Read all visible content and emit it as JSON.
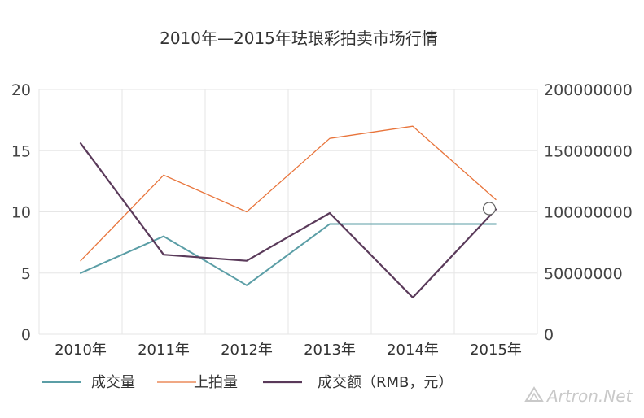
{
  "chart_data": {
    "type": "line",
    "title": "2010年—2015年珐琅彩拍卖市场行情",
    "categories": [
      "2010年",
      "2011年",
      "2012年",
      "2013年",
      "2014年",
      "2015年"
    ],
    "left_axis": {
      "ylim": [
        0,
        20
      ],
      "ticks": [
        "0",
        "5",
        "10",
        "15",
        "20"
      ]
    },
    "right_axis": {
      "ylim": [
        0,
        200000000
      ],
      "ticks": [
        "0",
        "50000000",
        "100000000",
        "150000000",
        "200000000"
      ]
    },
    "series": [
      {
        "name": "成交量",
        "axis": "left",
        "color": "#5b9ea6",
        "width": 2,
        "values": [
          5,
          8,
          4,
          9,
          9,
          9
        ]
      },
      {
        "name": "上拍量",
        "axis": "left",
        "color": "#e8743b",
        "width": 1.3,
        "values": [
          6,
          13,
          10,
          16,
          17,
          11
        ]
      },
      {
        "name": "成交额（RMB，元）",
        "axis": "right",
        "color": "#5a3a5a",
        "width": 2.2,
        "values": [
          156000000,
          65000000,
          60000000,
          99000000,
          30000000,
          102000000
        ]
      }
    ],
    "legend_position": "bottom-left",
    "grid": true
  },
  "watermark": "Artron.Net"
}
